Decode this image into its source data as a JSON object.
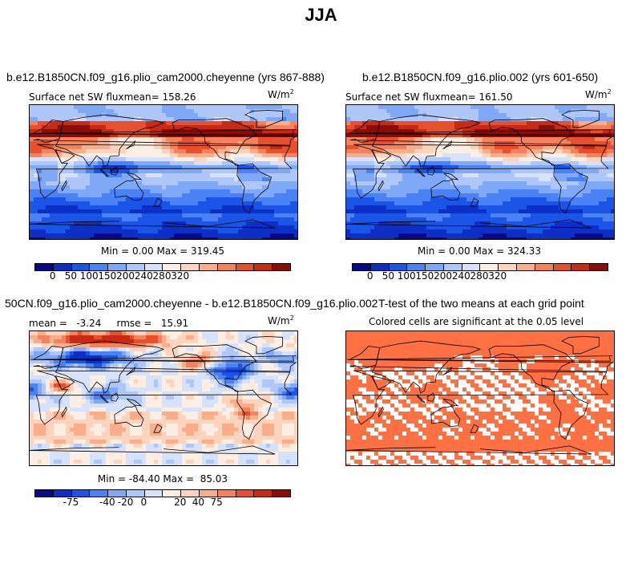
{
  "figure": {
    "title": "JJA"
  },
  "panels": [
    {
      "title": "b.e12.B1850CN.f09_g16.plio_cam2000.cheyenne (yrs 867-888)",
      "subtitle": "Surface net SW fluxmean= 158.26",
      "units": "W/m",
      "units_sup": "2",
      "minmax": "Min =    0.00 Max = 319.45",
      "map_type": "absolute"
    },
    {
      "title": "b.e12.B1850CN.f09_g16.plio.002 (yrs 601-650)",
      "subtitle": "Surface net SW fluxmean= 161.50",
      "units": "W/m",
      "units_sup": "2",
      "minmax": "Min =    0.00 Max = 324.33",
      "map_type": "absolute"
    },
    {
      "title": "50CN.f09_g16.plio_cam2000.cheyenne - b.e12.B1850CN.f09_g16.plio.002",
      "subtitle": "mean =   -3.24     rmse =   15.91",
      "units": "W/m",
      "units_sup": "2",
      "minmax": "Min = -84.40 Max =  85.03",
      "map_type": "difference"
    },
    {
      "title": "T-test of the two means at each grid point",
      "subtitle": "Colored cells are significant at the 0.05 level",
      "map_type": "significance",
      "significance_color": "#ff7043"
    }
  ],
  "colorbars": {
    "absolute": {
      "colors": [
        "#08088a",
        "#0d2fc6",
        "#1b55e8",
        "#4a82f5",
        "#7fa9f7",
        "#aec7f8",
        "#d6e2fb",
        "#fdeee3",
        "#fcd3bd",
        "#f9ad8a",
        "#f5825a",
        "#e8502d",
        "#c92a14",
        "#8c0d08"
      ],
      "tick_labels": [
        "0",
        "50",
        "100",
        "150",
        "200",
        "240",
        "280",
        "320"
      ],
      "tick_positions": [
        1,
        2,
        3,
        4,
        5,
        6,
        7,
        8
      ]
    },
    "difference": {
      "colors": [
        "#08088a",
        "#0d2fc6",
        "#1b55e8",
        "#4a82f5",
        "#7fa9f7",
        "#aec7f8",
        "#d6e2fb",
        "#fdeee3",
        "#fcd3bd",
        "#f9ad8a",
        "#f5825a",
        "#e8502d",
        "#c92a14",
        "#8c0d08"
      ],
      "tick_labels": [
        "-75",
        "-40",
        "-20",
        "0",
        "20",
        "40",
        "75"
      ],
      "tick_positions": [
        2,
        4,
        5,
        6,
        8,
        9,
        10
      ]
    }
  }
}
